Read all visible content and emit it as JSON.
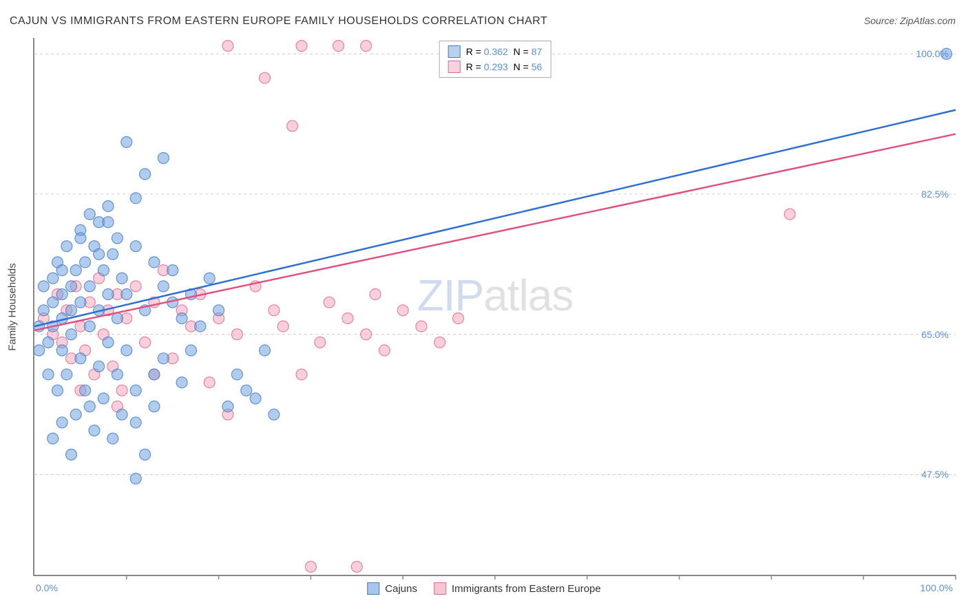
{
  "title": "CAJUN VS IMMIGRANTS FROM EASTERN EUROPE FAMILY HOUSEHOLDS CORRELATION CHART",
  "source_label": "Source: ZipAtlas.com",
  "watermark_zip": "ZIP",
  "watermark_atlas": "atlas",
  "ylabel": "Family Households",
  "chart": {
    "type": "scatter",
    "xlim": [
      0,
      100
    ],
    "ylim": [
      35,
      102
    ],
    "xtick_labels": {
      "min": "0.0%",
      "max": "100.0%"
    },
    "ytick_positions": [
      47.5,
      65.0,
      82.5,
      100.0
    ],
    "ytick_labels": [
      "47.5%",
      "65.0%",
      "82.5%",
      "100.0%"
    ],
    "xtick_positions": [
      0,
      10,
      20,
      30,
      40,
      50,
      60,
      70,
      80,
      90,
      100
    ],
    "grid_color": "#cccccc",
    "axis_color": "#888888",
    "marker_radius": 8,
    "marker_opacity": 0.55,
    "line_width": 2.5,
    "series": [
      {
        "name": "Cajuns",
        "color": "#6fa3e0",
        "stroke": "#4a7cc0",
        "line_color": "#2e6fd1",
        "R": "0.362",
        "N": "87",
        "trend": {
          "x1": 0,
          "y1": 66,
          "x2": 100,
          "y2": 93
        },
        "points": [
          [
            0.5,
            66
          ],
          [
            0.5,
            63
          ],
          [
            1,
            68
          ],
          [
            1,
            71
          ],
          [
            1.5,
            64
          ],
          [
            1.5,
            60
          ],
          [
            2,
            72
          ],
          [
            2,
            69
          ],
          [
            2,
            66
          ],
          [
            2.5,
            74
          ],
          [
            2.5,
            58
          ],
          [
            3,
            70
          ],
          [
            3,
            67
          ],
          [
            3,
            63
          ],
          [
            3.5,
            76
          ],
          [
            3.5,
            60
          ],
          [
            4,
            71
          ],
          [
            4,
            68
          ],
          [
            4,
            65
          ],
          [
            4.5,
            73
          ],
          [
            4.5,
            55
          ],
          [
            5,
            78
          ],
          [
            5,
            69
          ],
          [
            5,
            62
          ],
          [
            5.5,
            74
          ],
          [
            5.5,
            58
          ],
          [
            6,
            80
          ],
          [
            6,
            71
          ],
          [
            6,
            66
          ],
          [
            6.5,
            76
          ],
          [
            6.5,
            53
          ],
          [
            7,
            79
          ],
          [
            7,
            68
          ],
          [
            7,
            61
          ],
          [
            7.5,
            73
          ],
          [
            7.5,
            57
          ],
          [
            8,
            81
          ],
          [
            8,
            70
          ],
          [
            8,
            64
          ],
          [
            8.5,
            75
          ],
          [
            8.5,
            52
          ],
          [
            9,
            77
          ],
          [
            9,
            67
          ],
          [
            9,
            60
          ],
          [
            9.5,
            72
          ],
          [
            9.5,
            55
          ],
          [
            10,
            89
          ],
          [
            10,
            70
          ],
          [
            10,
            63
          ],
          [
            11,
            82
          ],
          [
            11,
            58
          ],
          [
            11,
            54
          ],
          [
            12,
            85
          ],
          [
            12,
            68
          ],
          [
            12,
            50
          ],
          [
            13,
            74
          ],
          [
            13,
            60
          ],
          [
            13,
            56
          ],
          [
            14,
            71
          ],
          [
            14,
            62
          ],
          [
            15,
            69
          ],
          [
            15,
            73
          ],
          [
            16,
            67
          ],
          [
            16,
            59
          ],
          [
            17,
            70
          ],
          [
            17,
            63
          ],
          [
            18,
            66
          ],
          [
            19,
            72
          ],
          [
            20,
            68
          ],
          [
            21,
            56
          ],
          [
            22,
            60
          ],
          [
            23,
            58
          ],
          [
            24,
            57
          ],
          [
            25,
            63
          ],
          [
            26,
            55
          ],
          [
            11,
            47
          ],
          [
            6,
            56
          ],
          [
            4,
            50
          ],
          [
            3,
            54
          ],
          [
            2,
            52
          ],
          [
            99,
            100
          ],
          [
            14,
            87
          ],
          [
            11,
            76
          ],
          [
            8,
            79
          ],
          [
            7,
            75
          ],
          [
            5,
            77
          ],
          [
            3,
            73
          ]
        ]
      },
      {
        "name": "Immigrants from Eastern Europe",
        "color": "#f2a8bc",
        "stroke": "#e06a8f",
        "line_color": "#e05080",
        "R": "0.293",
        "N": "56",
        "trend": {
          "x1": 0,
          "y1": 65.5,
          "x2": 100,
          "y2": 90
        },
        "points": [
          [
            1,
            67
          ],
          [
            2,
            65
          ],
          [
            2.5,
            70
          ],
          [
            3,
            64
          ],
          [
            3.5,
            68
          ],
          [
            4,
            62
          ],
          [
            4.5,
            71
          ],
          [
            5,
            66
          ],
          [
            5.5,
            63
          ],
          [
            6,
            69
          ],
          [
            6.5,
            60
          ],
          [
            7,
            72
          ],
          [
            7.5,
            65
          ],
          [
            8,
            68
          ],
          [
            8.5,
            61
          ],
          [
            9,
            70
          ],
          [
            9.5,
            58
          ],
          [
            10,
            67
          ],
          [
            11,
            71
          ],
          [
            12,
            64
          ],
          [
            13,
            69
          ],
          [
            14,
            73
          ],
          [
            15,
            62
          ],
          [
            16,
            68
          ],
          [
            17,
            66
          ],
          [
            18,
            70
          ],
          [
            19,
            59
          ],
          [
            20,
            67
          ],
          [
            21,
            101
          ],
          [
            22,
            65
          ],
          [
            24,
            71
          ],
          [
            25,
            97
          ],
          [
            26,
            68
          ],
          [
            27,
            66
          ],
          [
            28,
            91
          ],
          [
            29,
            60
          ],
          [
            30,
            36
          ],
          [
            31,
            64
          ],
          [
            32,
            69
          ],
          [
            33,
            101
          ],
          [
            34,
            67
          ],
          [
            35,
            36
          ],
          [
            36,
            65
          ],
          [
            37,
            70
          ],
          [
            38,
            63
          ],
          [
            40,
            68
          ],
          [
            42,
            66
          ],
          [
            44,
            64
          ],
          [
            46,
            67
          ],
          [
            36,
            101
          ],
          [
            29,
            101
          ],
          [
            82,
            80
          ],
          [
            21,
            55
          ],
          [
            13,
            60
          ],
          [
            9,
            56
          ],
          [
            5,
            58
          ]
        ]
      }
    ]
  },
  "legend_bottom": [
    {
      "label": "Cajuns",
      "fill": "#a8c6ec",
      "stroke": "#4a7cc0"
    },
    {
      "label": "Immigrants from Eastern Europe",
      "fill": "#f7c6d4",
      "stroke": "#e06a8f"
    }
  ]
}
